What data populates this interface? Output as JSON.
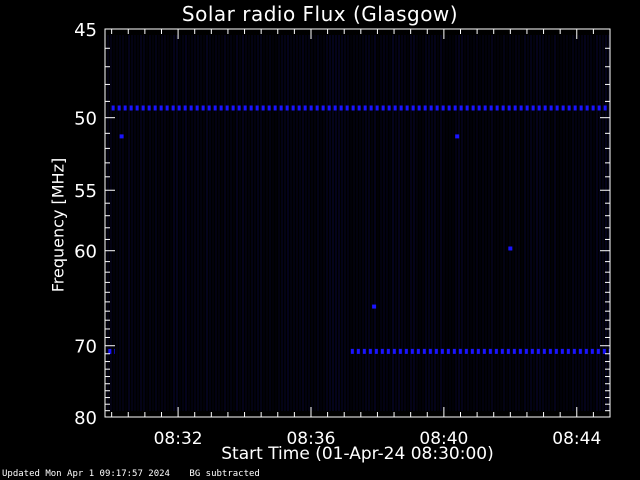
{
  "colors": {
    "background": "#000000",
    "axes": "#ffffff",
    "data": "#1a14ff",
    "data_dark": "#070630"
  },
  "chart_data": {
    "type": "heatmap",
    "title": "Solar radio Flux (Glasgow)",
    "xlabel": "Start Time (01-Apr-24 08:30:00)",
    "ylabel": "Frequency [MHz]",
    "xlim_minutes_after_0830": [
      -0.2,
      15.0
    ],
    "ylim": [
      45,
      80
    ],
    "y_scale": "reciprocal",
    "x_ticks": [
      {
        "label": "08:32",
        "minute": 2
      },
      {
        "label": "08:36",
        "minute": 6
      },
      {
        "label": "08:40",
        "minute": 10
      },
      {
        "label": "08:44",
        "minute": 14
      }
    ],
    "y_ticks": [
      {
        "label": "45",
        "mhz": 45
      },
      {
        "label": "50",
        "mhz": 50
      },
      {
        "label": "55",
        "mhz": 55
      },
      {
        "label": "60",
        "mhz": 60
      },
      {
        "label": "70",
        "mhz": 70
      },
      {
        "label": "80",
        "mhz": 80
      }
    ],
    "bright_bands": [
      {
        "mhz": 49.4,
        "from_minute": 0.0,
        "to_minute": 14.9
      },
      {
        "mhz": 70.7,
        "from_minute": 7.2,
        "to_minute": 15.0
      },
      {
        "mhz": 70.7,
        "from_minute": -0.1,
        "to_minute": 0.1
      }
    ],
    "bright_spots": [
      {
        "minute": 0.3,
        "mhz": 51.2
      },
      {
        "minute": 10.4,
        "mhz": 51.2
      },
      {
        "minute": 12.0,
        "mhz": 59.8
      },
      {
        "minute": 7.9,
        "mhz": 65.5
      }
    ]
  },
  "footer": {
    "updated": "Updated Mon Apr  1 09:17:57 2024",
    "note": "BG subtracted"
  }
}
